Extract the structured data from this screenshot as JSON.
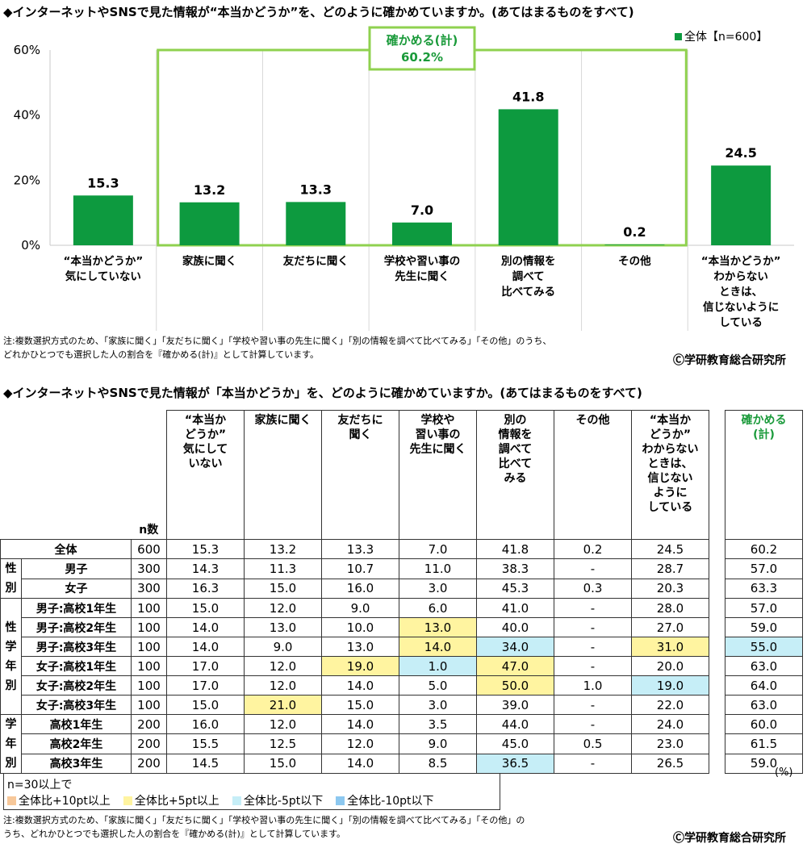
{
  "title1": "◆インターネットやSNSで見た情報が“本当かどうか”を、どのように確かめていますか。(あてはまるものをすべて)",
  "title2": "◆インターネットやSNSで見た情報が「本当かどうか」を、どのように確かめていますか。(あてはまるものをすべて)",
  "chart_data": {
    "type": "bar",
    "categories": [
      "“本当かどうか”気にしていない",
      "家族に聞く",
      "友だちに聞く",
      "学校や習い事の先生に聞く",
      "別の情報を調べて比べてみる",
      "その他",
      "“本当かどうか”わからないときは、信じないようにしている"
    ],
    "category_lines": [
      [
        "“本当かどうか”",
        "気にしていない"
      ],
      [
        "家族に聞く"
      ],
      [
        "友だちに聞く"
      ],
      [
        "学校や習い事の",
        "先生に聞く"
      ],
      [
        "別の情報を",
        "調べて",
        "比べてみる"
      ],
      [
        "その他"
      ],
      [
        "“本当かどうか”",
        "わからない",
        "ときは、",
        "信じないように",
        "している"
      ]
    ],
    "series": [
      {
        "name": "全体【n=600】",
        "values": [
          15.3,
          13.2,
          13.3,
          7.0,
          41.8,
          0.2,
          24.5
        ]
      }
    ],
    "value_labels": [
      "15.3",
      "13.2",
      "13.3",
      "7.0",
      "41.8",
      "0.2",
      "24.5"
    ],
    "ylim": [
      0,
      60
    ],
    "yticks": [
      "0%",
      "20%",
      "40%",
      "60%"
    ],
    "legend_position": "top-right",
    "annotation": {
      "line1": "確かめる(計)",
      "line2": "60.2%"
    },
    "bar_color": "#0d9a3f",
    "highlight_color": "#8fd14f"
  },
  "note1": {
    "line1": "注:複数選択方式のため、「家族に聞く」「友だちに聞く」「学校や習い事の先生に聞く」「別の情報を調べて比べてみる」「その他」のうち、",
    "line2": "どれかひとつでも選択した人の割合を『確かめる(計)』として計算しています。"
  },
  "copyright": "Ⓒ学研教育総合研究所",
  "table": {
    "n_header": "n数",
    "columns": [
      "“本当か どうか” 気にして いない",
      "家族に聞く",
      "友だちに 聞く",
      "学校や 習い事の 先生に聞く",
      "別の 情報を 調べて 比べて みる",
      "その他",
      "“本当か どうか” わからない ときは、 信じない ように している"
    ],
    "sum_header": "確かめる (計)",
    "rows": [
      {
        "group": "",
        "label": "全体",
        "n": "600",
        "vals": [
          "15.3",
          "13.2",
          "13.3",
          "7.0",
          "41.8",
          "0.2",
          "24.5"
        ],
        "sum": "60.2",
        "hl": [
          "",
          "",
          "",
          "",
          "",
          "",
          "",
          ""
        ]
      },
      {
        "group": "性別",
        "label": "男子",
        "n": "300",
        "vals": [
          "14.3",
          "11.3",
          "10.7",
          "11.0",
          "38.3",
          "-",
          "28.7"
        ],
        "sum": "57.0",
        "hl": [
          "",
          "",
          "",
          "",
          "",
          "",
          "",
          ""
        ]
      },
      {
        "group": "性別",
        "label": "女子",
        "n": "300",
        "vals": [
          "16.3",
          "15.0",
          "16.0",
          "3.0",
          "45.3",
          "0.3",
          "20.3"
        ],
        "sum": "63.3",
        "hl": [
          "",
          "",
          "",
          "",
          "",
          "",
          "",
          ""
        ]
      },
      {
        "group": "性学年別",
        "label": "男子:高校1年生",
        "n": "100",
        "vals": [
          "15.0",
          "12.0",
          "9.0",
          "6.0",
          "41.0",
          "-",
          "28.0"
        ],
        "sum": "57.0",
        "hl": [
          "",
          "",
          "",
          "",
          "",
          "",
          "",
          ""
        ]
      },
      {
        "group": "性学年別",
        "label": "男子:高校2年生",
        "n": "100",
        "vals": [
          "14.0",
          "13.0",
          "10.0",
          "13.0",
          "40.0",
          "-",
          "27.0"
        ],
        "sum": "59.0",
        "hl": [
          "",
          "",
          "",
          "plus5",
          "",
          "",
          "",
          ""
        ]
      },
      {
        "group": "性学年別",
        "label": "男子:高校3年生",
        "n": "100",
        "vals": [
          "14.0",
          "9.0",
          "13.0",
          "14.0",
          "34.0",
          "-",
          "31.0"
        ],
        "sum": "55.0",
        "hl": [
          "",
          "",
          "",
          "plus5",
          "minus5",
          "",
          "plus5",
          "minus5"
        ]
      },
      {
        "group": "性学年別",
        "label": "女子:高校1年生",
        "n": "100",
        "vals": [
          "17.0",
          "12.0",
          "19.0",
          "1.0",
          "47.0",
          "-",
          "20.0"
        ],
        "sum": "63.0",
        "hl": [
          "",
          "",
          "plus5",
          "minus5",
          "plus5",
          "",
          "",
          ""
        ]
      },
      {
        "group": "性学年別",
        "label": "女子:高校2年生",
        "n": "100",
        "vals": [
          "17.0",
          "12.0",
          "14.0",
          "5.0",
          "50.0",
          "1.0",
          "19.0"
        ],
        "sum": "64.0",
        "hl": [
          "",
          "",
          "",
          "",
          "plus5",
          "",
          "minus5",
          ""
        ]
      },
      {
        "group": "性学年別",
        "label": "女子:高校3年生",
        "n": "100",
        "vals": [
          "15.0",
          "21.0",
          "15.0",
          "3.0",
          "39.0",
          "-",
          "22.0"
        ],
        "sum": "63.0",
        "hl": [
          "",
          "plus5",
          "",
          "",
          "",
          "",
          "",
          ""
        ]
      },
      {
        "group": "学年別",
        "label": "高校1年生",
        "n": "200",
        "vals": [
          "16.0",
          "12.0",
          "14.0",
          "3.5",
          "44.0",
          "-",
          "24.0"
        ],
        "sum": "60.0",
        "hl": [
          "",
          "",
          "",
          "",
          "",
          "",
          "",
          ""
        ]
      },
      {
        "group": "学年別",
        "label": "高校2年生",
        "n": "200",
        "vals": [
          "15.5",
          "12.5",
          "12.0",
          "9.0",
          "45.0",
          "0.5",
          "23.0"
        ],
        "sum": "61.5",
        "hl": [
          "",
          "",
          "",
          "",
          "",
          "",
          "",
          ""
        ]
      },
      {
        "group": "学年別",
        "label": "高校3年生",
        "n": "200",
        "vals": [
          "14.5",
          "15.0",
          "14.0",
          "8.5",
          "36.5",
          "-",
          "26.5"
        ],
        "sum": "59.0",
        "hl": [
          "",
          "",
          "",
          "",
          "minus5",
          "",
          "",
          ""
        ]
      }
    ],
    "groups": [
      {
        "chars": [
          "性",
          "別"
        ],
        "rows": 2
      },
      {
        "chars": [
          "性",
          "学",
          "年",
          "別"
        ],
        "rows": 6
      },
      {
        "chars": [
          "学",
          "年",
          "別"
        ],
        "rows": 3
      }
    ]
  },
  "legend": {
    "title": "n=30以上で",
    "items": [
      {
        "label": "全体比+10pt以上",
        "color": "#f7c89a"
      },
      {
        "label": "全体比+5pt以上",
        "color": "#fff4a0"
      },
      {
        "label": "全体比-5pt以下",
        "color": "#c6eef7"
      },
      {
        "label": "全体比-10pt以下",
        "color": "#8cc8f0"
      }
    ]
  },
  "pct_unit": "(%)",
  "note2": {
    "line1": "注:複数選択方式のため、「家族に聞く」「友だちに聞く」「学校や習い事の先生に聞く」「別の情報を調べて比べてみる」「その他」の",
    "line2": "うち、どれかひとつでも選択した人の割合を『確かめる(計)』として計算しています。"
  }
}
